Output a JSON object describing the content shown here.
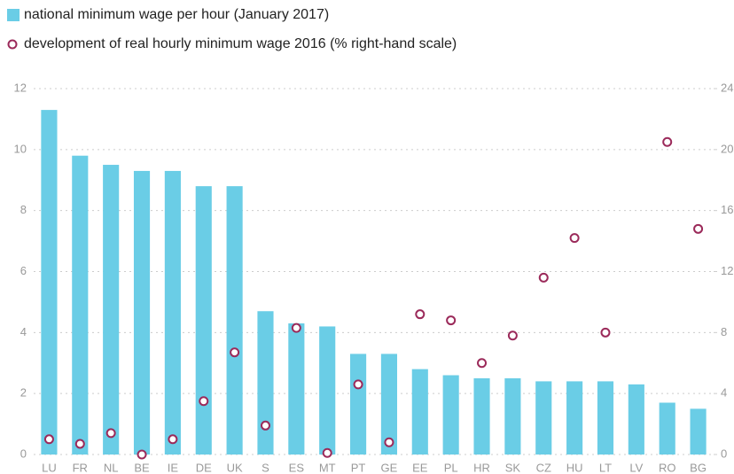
{
  "chart_data": {
    "type": "bar",
    "categories": [
      "LU",
      "FR",
      "NL",
      "BE",
      "IE",
      "DE",
      "UK",
      "S",
      "ES",
      "MT",
      "PT",
      "GE",
      "EE",
      "PL",
      "HR",
      "SK",
      "CZ",
      "HU",
      "LT",
      "LV",
      "RO",
      "BG"
    ],
    "series": [
      {
        "name": "national minimum wage per hour (January 2017)",
        "type": "bar",
        "color": "#6acde6",
        "values": [
          11.3,
          9.8,
          9.5,
          9.3,
          9.3,
          8.8,
          8.8,
          4.7,
          4.3,
          4.2,
          3.3,
          3.3,
          2.8,
          2.6,
          2.5,
          2.5,
          2.4,
          2.4,
          2.4,
          2.3,
          1.7,
          1.5
        ]
      },
      {
        "name": "development of real hourly minimum wage 2016 (% right-hand scale)",
        "type": "scatter",
        "axis": "y2",
        "color": "#9b2a5a",
        "values": [
          1.0,
          0.7,
          1.4,
          0,
          1.0,
          3.5,
          6.7,
          1.9,
          8.3,
          0.1,
          4.6,
          0.8,
          9.2,
          8.8,
          6.0,
          7.8,
          11.6,
          14.2,
          8.0,
          null,
          20.5,
          14.8
        ]
      }
    ],
    "ylim": [
      0,
      12
    ],
    "yticks": [
      0,
      2,
      4,
      6,
      8,
      10,
      12
    ],
    "y2lim": [
      0,
      24
    ],
    "y2ticks": [
      0,
      4,
      8,
      12,
      16,
      20,
      24
    ],
    "grid": true
  }
}
